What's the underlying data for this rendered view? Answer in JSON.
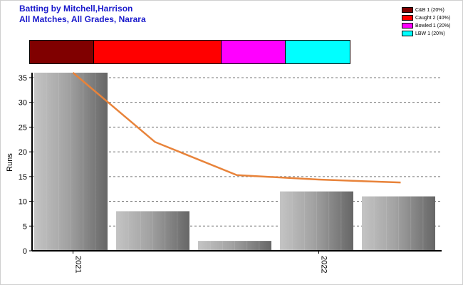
{
  "title_line1": "Batting by Mitchell,Harrison",
  "title_line2": "All Matches, All Grades, Narara",
  "dismissals": [
    {
      "label": "C&B 1 (20%)",
      "color": "#800000",
      "share": 0.2
    },
    {
      "label": "Caught 2 (40%)",
      "color": "#ff0000",
      "share": 0.4
    },
    {
      "label": "Bowled 1 (20%)",
      "color": "#ff00ff",
      "share": 0.2
    },
    {
      "label": "LBW 1 (20%)",
      "color": "#00ffff",
      "share": 0.2
    }
  ],
  "chart_data": {
    "type": "bar",
    "ylabel": "Runs",
    "xlabel": "",
    "ylim": [
      0,
      36
    ],
    "yticks": [
      0,
      5,
      10,
      15,
      20,
      25,
      30,
      35
    ],
    "grid": true,
    "categories": [
      "2021",
      "",
      "",
      "2022",
      ""
    ],
    "x_tick_labels": [
      {
        "label": "2021",
        "index": 0
      },
      {
        "label": "2022",
        "index": 3
      }
    ],
    "series": [
      {
        "kind": "bar",
        "values": [
          36,
          8,
          2,
          12,
          11
        ],
        "color": "#a0a0a0"
      },
      {
        "kind": "line",
        "values": [
          36,
          22,
          15.3,
          14.4,
          13.8
        ],
        "color": "#e8833a"
      }
    ]
  }
}
